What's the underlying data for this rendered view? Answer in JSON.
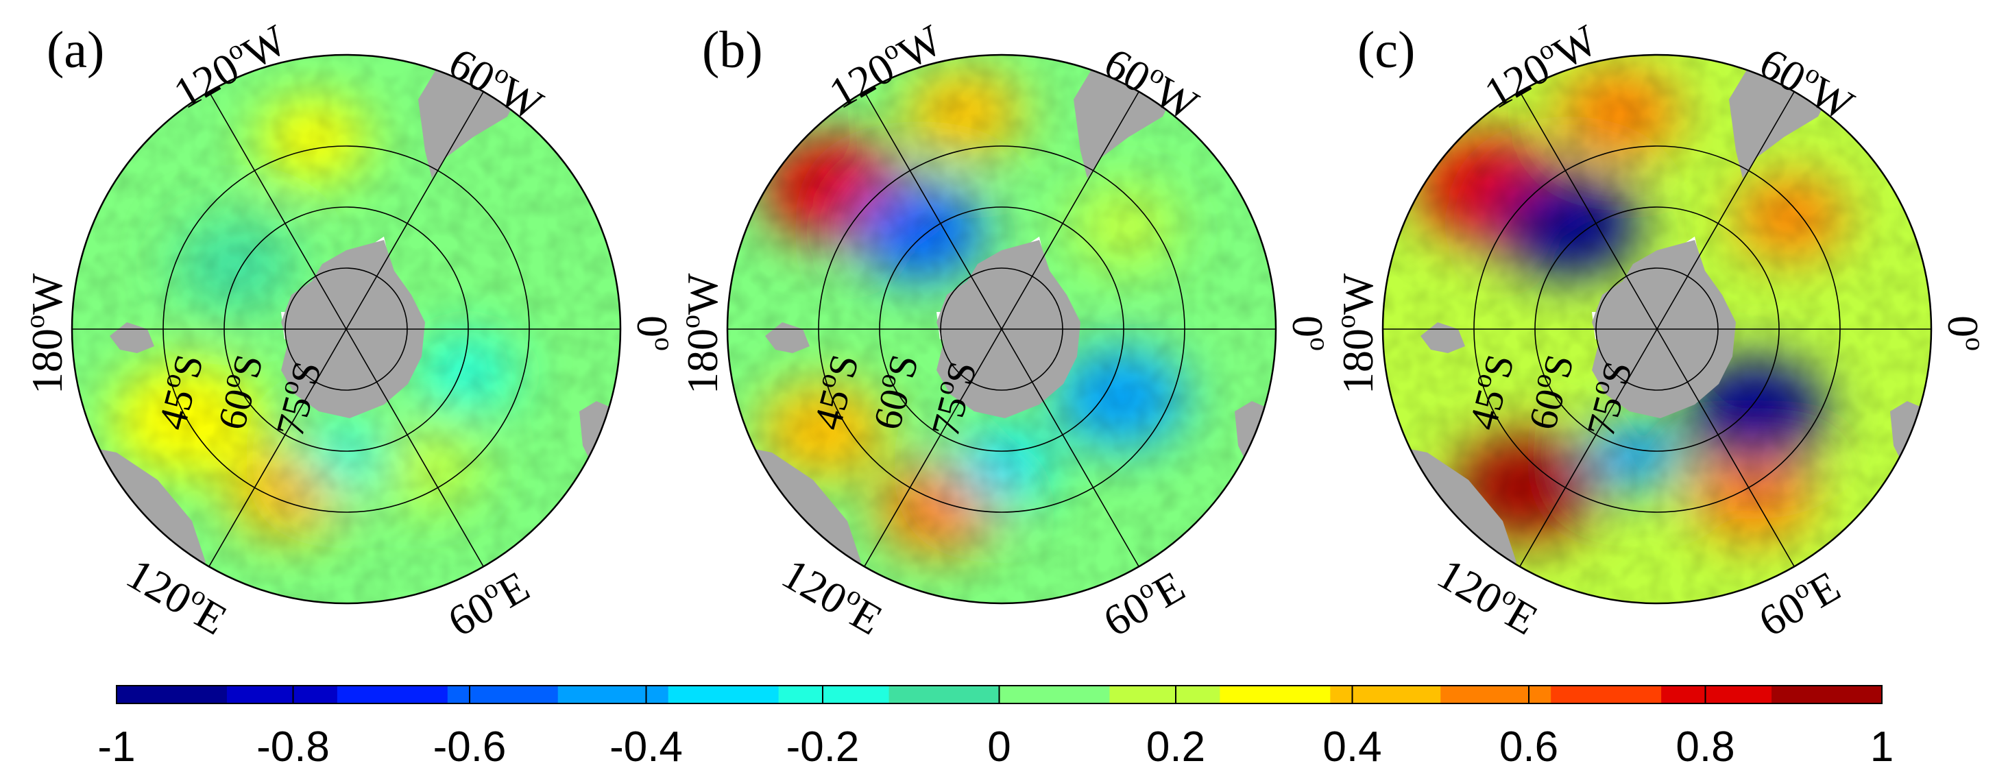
{
  "palette": [
    "#00008f",
    "#0000c8",
    "#0020ff",
    "#0060ff",
    "#00a0ff",
    "#00e0ff",
    "#20ffdf",
    "#40e0a0",
    "#80ff80",
    "#c0ff40",
    "#ffff00",
    "#ffc000",
    "#ff8000",
    "#ff4000",
    "#e00000",
    "#a00000"
  ],
  "colors": {
    "land": "#a6a6a6",
    "grid": "#000000",
    "ocean_mid": "#40e0a0"
  },
  "panels": [
    {
      "id": "a",
      "label": "(a)",
      "lon_labels": {
        "w120": "120",
        "w60": "60",
        "e120": "120",
        "e60": "60",
        "w180": "180",
        "zero": "0"
      },
      "lat_labels": {
        "s45": "45",
        "s60": "60",
        "s75": "75"
      },
      "blobs": [
        {
          "lon": 150,
          "lat": -50,
          "r": 0.28,
          "v": 0.35
        },
        {
          "lon": 110,
          "lat": -52,
          "r": 0.22,
          "v": 0.4
        },
        {
          "lon": 60,
          "lat": -55,
          "r": 0.2,
          "v": 0.15
        },
        {
          "lon": -100,
          "lat": -48,
          "r": 0.2,
          "v": 0.25
        },
        {
          "lon": 20,
          "lat": -62,
          "r": 0.18,
          "v": -0.25
        },
        {
          "lon": -150,
          "lat": -62,
          "r": 0.22,
          "v": -0.1
        },
        {
          "lon": 90,
          "lat": -62,
          "r": 0.16,
          "v": -0.2
        }
      ],
      "base": 0.02
    },
    {
      "id": "b",
      "label": "(b)",
      "lon_labels": {
        "w120": "120",
        "w60": "60",
        "e120": "120",
        "e60": "60",
        "w180": "180",
        "zero": "0"
      },
      "lat_labels": {
        "s45": "45",
        "s60": "60",
        "s75": "75"
      },
      "blobs": [
        {
          "lon": -140,
          "lat": -42,
          "r": 0.26,
          "v": 0.75
        },
        {
          "lon": 150,
          "lat": -45,
          "r": 0.24,
          "v": 0.45
        },
        {
          "lon": 110,
          "lat": -48,
          "r": 0.22,
          "v": 0.5
        },
        {
          "lon": -100,
          "lat": -42,
          "r": 0.22,
          "v": 0.45
        },
        {
          "lon": -130,
          "lat": -62,
          "r": 0.24,
          "v": -0.55
        },
        {
          "lon": 30,
          "lat": -60,
          "r": 0.24,
          "v": -0.45
        },
        {
          "lon": 90,
          "lat": -60,
          "r": 0.18,
          "v": -0.3
        },
        {
          "lon": -40,
          "lat": -55,
          "r": 0.2,
          "v": 0.2
        }
      ],
      "base": 0.0
    },
    {
      "id": "c",
      "label": "(c)",
      "lon_labels": {
        "w120": "120",
        "w60": "60",
        "e120": "120",
        "e60": "60",
        "w180": "180",
        "zero": "0"
      },
      "lat_labels": {
        "s45": "45",
        "s60": "60",
        "s75": "75"
      },
      "blobs": [
        {
          "lon": -140,
          "lat": -42,
          "r": 0.26,
          "v": 0.85
        },
        {
          "lon": 130,
          "lat": -45,
          "r": 0.26,
          "v": 0.9
        },
        {
          "lon": -100,
          "lat": -42,
          "r": 0.22,
          "v": 0.6
        },
        {
          "lon": 60,
          "lat": -48,
          "r": 0.22,
          "v": 0.5
        },
        {
          "lon": -40,
          "lat": -52,
          "r": 0.2,
          "v": 0.55
        },
        {
          "lon": -130,
          "lat": -60,
          "r": 0.26,
          "v": -0.9
        },
        {
          "lon": 40,
          "lat": -62,
          "r": 0.26,
          "v": -0.9
        },
        {
          "lon": 100,
          "lat": -62,
          "r": 0.18,
          "v": -0.5
        }
      ],
      "base": 0.15
    }
  ],
  "colorbar": {
    "min": -1,
    "max": 1,
    "ticks": [
      "-1",
      "-0.8",
      "-0.6",
      "-0.4",
      "-0.2",
      "0",
      "0.2",
      "0.4",
      "0.6",
      "0.8",
      "1"
    ]
  }
}
